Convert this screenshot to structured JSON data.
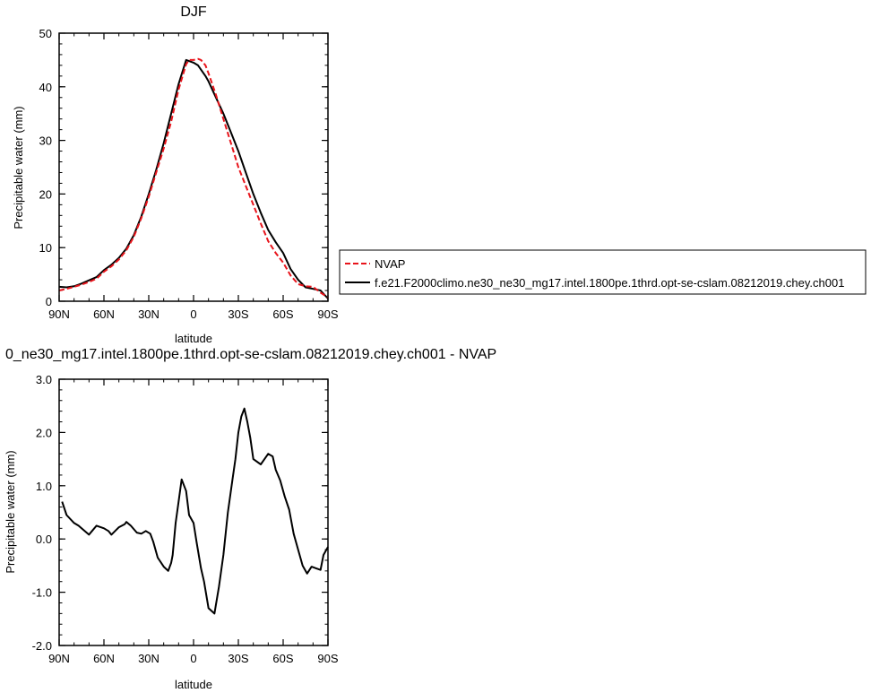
{
  "colors": {
    "obs": "#e8141b",
    "model": "#000000",
    "axis": "#000000"
  },
  "chart_data": [
    {
      "type": "line",
      "title": "DJF",
      "xlabel": "latitude",
      "ylabel": "Precipitable water (mm)",
      "x_ticks": [
        90,
        60,
        30,
        0,
        -30,
        -60,
        -90
      ],
      "x_tick_labels": [
        "90N",
        "60N",
        "30N",
        "0",
        "30S",
        "60S",
        "90S"
      ],
      "y_ticks": [
        0,
        10,
        20,
        30,
        40,
        50
      ],
      "y_tick_labels": [
        "0",
        "10",
        "20",
        "30",
        "40",
        "50"
      ],
      "xlim": [
        90,
        -90
      ],
      "ylim": [
        0,
        50
      ],
      "grid": false,
      "legend_position": "right",
      "series": [
        {
          "name": "NVAP",
          "style": "dashed",
          "color": "#e8141b",
          "x": [
            90,
            85,
            80,
            75,
            70,
            65,
            60,
            55,
            50,
            45,
            40,
            35,
            30,
            25,
            20,
            15,
            10,
            5,
            3,
            0,
            -3,
            -5,
            -8,
            -10,
            -15,
            -20,
            -25,
            -30,
            -35,
            -40,
            -45,
            -50,
            -55,
            -60,
            -65,
            -70,
            -75,
            -80,
            -85,
            -90
          ],
          "y": [
            2.0,
            2.3,
            2.7,
            3.1,
            3.6,
            4.2,
            5.5,
            6.5,
            7.8,
            9.5,
            12.0,
            15.5,
            19.5,
            24.0,
            28.5,
            33.5,
            39.5,
            44.2,
            45.0,
            45.0,
            45.2,
            45.0,
            44.0,
            42.5,
            38.5,
            34.0,
            29.5,
            25.0,
            21.5,
            18.0,
            14.5,
            11.2,
            9.0,
            7.2,
            4.8,
            3.2,
            2.8,
            2.7,
            1.6,
            0.7
          ]
        },
        {
          "name": "f.e21.F2000climo.ne30_ne30_mg17.intel.1800pe.1thrd.opt-se-cslam.08212019.chey.ch001",
          "style": "solid",
          "color": "#000000",
          "x": [
            90,
            85,
            80,
            75,
            70,
            65,
            60,
            55,
            50,
            45,
            40,
            35,
            30,
            25,
            20,
            15,
            10,
            5,
            3,
            0,
            -3,
            -5,
            -8,
            -10,
            -15,
            -20,
            -25,
            -30,
            -35,
            -40,
            -45,
            -50,
            -55,
            -60,
            -65,
            -70,
            -75,
            -80,
            -85,
            -90
          ],
          "y": [
            2.7,
            2.6,
            2.8,
            3.3,
            3.9,
            4.5,
            5.8,
            6.8,
            8.1,
            9.8,
            12.3,
            15.8,
            20.0,
            24.5,
            29.5,
            35.0,
            40.5,
            45.0,
            44.8,
            44.5,
            44.0,
            43.2,
            42.0,
            41.0,
            38.0,
            35.0,
            31.5,
            28.0,
            24.0,
            20.0,
            16.5,
            13.3,
            11.0,
            9.0,
            6.0,
            4.0,
            2.6,
            2.3,
            2.0,
            0.5
          ]
        }
      ]
    },
    {
      "type": "line",
      "title": "0_ne30_mg17.intel.1800pe.1thrd.opt-se-cslam.08212019.chey.ch001 - NVAP",
      "xlabel": "latitude",
      "ylabel": "Precipitable water (mm)",
      "x_ticks": [
        90,
        60,
        30,
        0,
        -30,
        -60,
        -90
      ],
      "x_tick_labels": [
        "90N",
        "60N",
        "30N",
        "0",
        "30S",
        "60S",
        "90S"
      ],
      "y_ticks": [
        -2,
        -1,
        0,
        1,
        2,
        3
      ],
      "y_tick_labels": [
        "-2.0",
        "-1.0",
        "0.0",
        "1.0",
        "2.0",
        "3.0"
      ],
      "xlim": [
        90,
        -90
      ],
      "ylim": [
        -2,
        3
      ],
      "grid": false,
      "series": [
        {
          "style": "solid",
          "color": "#000000",
          "x": [
            88,
            85,
            80,
            77,
            75,
            70,
            68,
            65,
            60,
            57,
            55,
            50,
            46,
            45,
            42,
            38,
            35,
            32,
            29,
            27,
            24,
            20,
            17,
            15,
            14,
            12,
            10,
            8,
            5,
            3,
            0,
            -2,
            -5,
            -7,
            -10,
            -14,
            -17,
            -20,
            -23,
            -26,
            -28,
            -30,
            -32,
            -34,
            -36,
            -38,
            -40,
            -45,
            -47,
            -50,
            -53,
            -55,
            -58,
            -61,
            -64,
            -67,
            -70,
            -73,
            -76,
            -79,
            -82,
            -85,
            -87,
            -90
          ],
          "y": [
            0.7,
            0.45,
            0.3,
            0.25,
            0.2,
            0.08,
            0.15,
            0.25,
            0.2,
            0.15,
            0.08,
            0.22,
            0.28,
            0.32,
            0.25,
            0.12,
            0.1,
            0.15,
            0.1,
            -0.05,
            -0.35,
            -0.52,
            -0.6,
            -0.45,
            -0.3,
            0.3,
            0.7,
            1.12,
            0.9,
            0.45,
            0.3,
            -0.05,
            -0.55,
            -0.8,
            -1.3,
            -1.4,
            -0.9,
            -0.3,
            0.5,
            1.1,
            1.5,
            2.0,
            2.3,
            2.45,
            2.2,
            1.9,
            1.5,
            1.4,
            1.48,
            1.6,
            1.55,
            1.3,
            1.1,
            0.8,
            0.55,
            0.1,
            -0.2,
            -0.5,
            -0.65,
            -0.52,
            -0.55,
            -0.58,
            -0.3,
            -0.15
          ]
        }
      ]
    }
  ]
}
